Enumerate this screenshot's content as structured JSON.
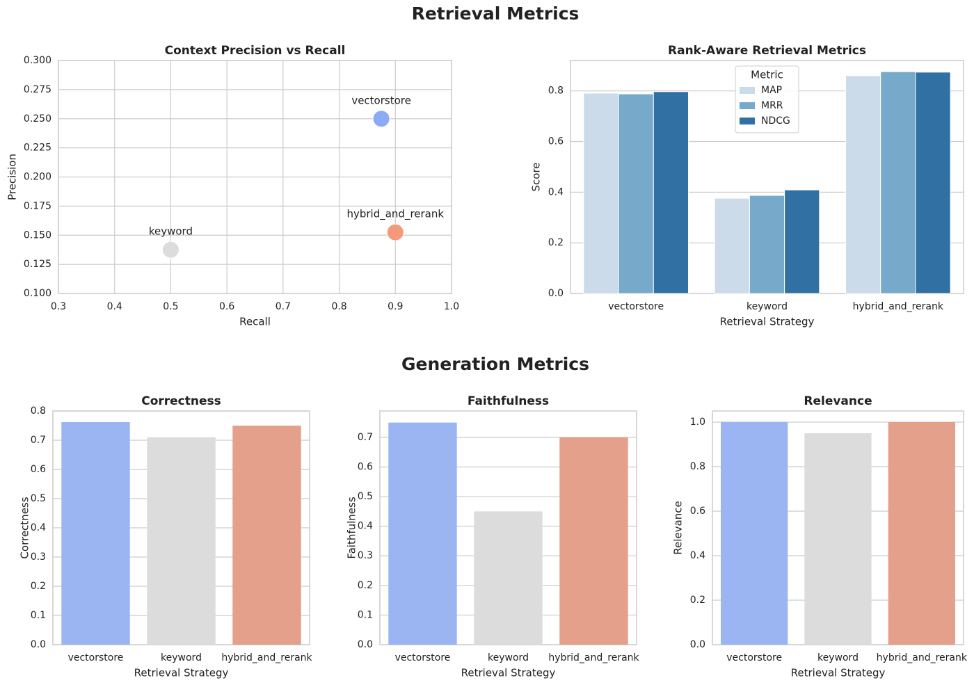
{
  "figure_titles": [
    "Retrieval Metrics",
    "Generation Metrics"
  ],
  "chart_data": [
    {
      "type": "scatter",
      "title": "Context Precision vs Recall",
      "xlabel": "Recall",
      "ylabel": "Precision",
      "labels": [
        "vectorstore",
        "keyword",
        "hybrid_and_rerank"
      ],
      "x": [
        0.875,
        0.5,
        0.9
      ],
      "values": [
        0.25,
        0.1375,
        0.1525
      ],
      "colors": [
        "#8caaf5",
        "#dcdcdc",
        "#f4997b"
      ],
      "xlim": [
        0.3,
        1.0
      ],
      "xticks": [
        0.3,
        0.4,
        0.5,
        0.6,
        0.7,
        0.8,
        0.9,
        {
          "value": 1,
          "label": "1.0"
        }
      ],
      "ylim": [
        0.1,
        0.3
      ],
      "yticks": [
        {
          "value": 0.1,
          "label": "0.100"
        },
        0.125,
        {
          "value": 0.15,
          "label": "0.150"
        },
        0.175,
        {
          "value": 0.2,
          "label": "0.200"
        },
        0.225,
        {
          "value": 0.25,
          "label": "0.250"
        },
        0.275,
        {
          "value": 0.3,
          "label": "0.300"
        }
      ],
      "grid": "both"
    },
    {
      "type": "grouped-bar",
      "title": "Rank-Aware Retrieval Metrics",
      "xlabel": "Retrieval Strategy",
      "ylabel": "Score",
      "categories": [
        "vectorstore",
        "keyword",
        "hybrid_and_rerank"
      ],
      "series": [
        {
          "name": "MAP",
          "color": "#cbdbea",
          "values": [
            0.791,
            0.376,
            0.86
          ]
        },
        {
          "name": "MRR",
          "color": "#77a9ca",
          "values": [
            0.788,
            0.387,
            0.876
          ]
        },
        {
          "name": "NDCG",
          "color": "#3170a3",
          "values": [
            0.797,
            0.409,
            0.874
          ]
        }
      ],
      "legend_title": "Metric",
      "legend": "upper center",
      "ylim": [
        0,
        0.92
      ],
      "yticks": [
        {
          "value": 0,
          "label": "0.0"
        },
        0.2,
        0.4,
        0.6,
        0.8
      ],
      "grid": "y"
    },
    {
      "type": "bar",
      "title": "Correctness",
      "xlabel": "Retrieval Strategy",
      "ylabel": "Correctness",
      "categories": [
        "vectorstore",
        "keyword",
        "hybrid_and_rerank"
      ],
      "values": [
        0.762,
        0.71,
        0.75
      ],
      "colors": [
        "#9ab5f2",
        "#dcdcdc",
        "#e4a08a"
      ],
      "ylim": [
        0,
        0.8
      ],
      "yticks": [
        {
          "value": 0,
          "label": "0.0"
        },
        0.1,
        0.2,
        0.3,
        0.4,
        0.5,
        0.6,
        0.7,
        0.8
      ],
      "grid": "y"
    },
    {
      "type": "bar",
      "title": "Faithfulness",
      "xlabel": "Retrieval Strategy",
      "ylabel": "Faithfulness",
      "categories": [
        "vectorstore",
        "keyword",
        "hybrid_and_rerank"
      ],
      "values": [
        0.75,
        0.45,
        0.7
      ],
      "colors": [
        "#9ab5f2",
        "#dcdcdc",
        "#e4a08a"
      ],
      "ylim": [
        0,
        0.789
      ],
      "yticks": [
        {
          "value": 0,
          "label": "0.0"
        },
        0.1,
        0.2,
        0.3,
        0.4,
        0.5,
        0.6,
        0.7
      ],
      "grid": "y"
    },
    {
      "type": "bar",
      "title": "Relevance",
      "xlabel": "Retrieval Strategy",
      "ylabel": "Relevance",
      "categories": [
        "vectorstore",
        "keyword",
        "hybrid_and_rerank"
      ],
      "values": [
        1.0,
        0.95,
        1.0
      ],
      "colors": [
        "#9ab5f2",
        "#dcdcdc",
        "#e4a08a"
      ],
      "ylim": [
        0,
        1.05
      ],
      "yticks": [
        {
          "value": 0,
          "label": "0.0"
        },
        0.2,
        0.4,
        0.6,
        0.8,
        {
          "value": 1,
          "label": "1.0"
        }
      ],
      "grid": "y"
    }
  ]
}
